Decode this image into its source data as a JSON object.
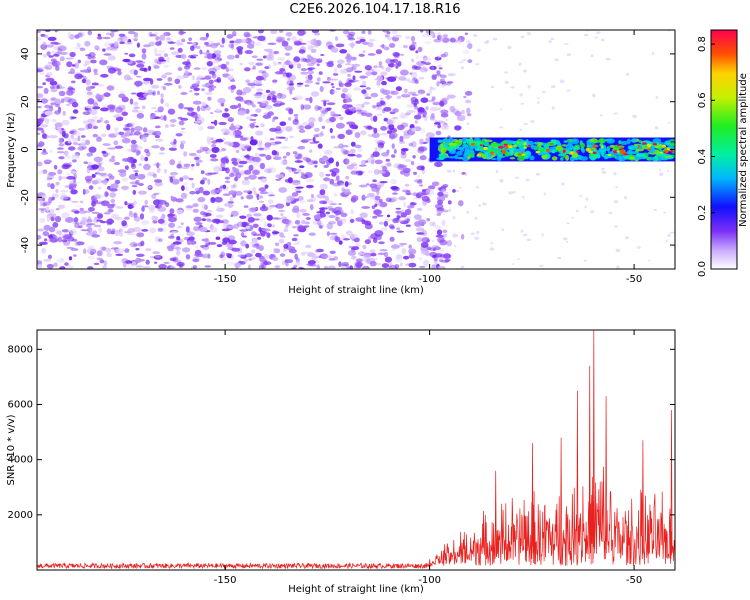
{
  "title": "C2E6.2026.104.17.18.R16",
  "colors": {
    "snr_line": "#e8201e",
    "noise_purple": "#7b2ff7",
    "axis": "#000000"
  },
  "chart_data": [
    {
      "type": "heatmap",
      "name": "spectrogram",
      "xlabel": "Height of straight line (km)",
      "ylabel": "Frequency (Hz)",
      "xlim": [
        -196,
        -40
      ],
      "ylim": [
        -50,
        50
      ],
      "xticks": [
        -150,
        -100,
        -50
      ],
      "yticks": [
        -40,
        -20,
        0,
        20,
        40
      ],
      "colorbar": {
        "label": "Normalized spectral amplitude",
        "range": [
          0.0,
          0.85
        ],
        "ticks": [
          0.0,
          0.2,
          0.4,
          0.6,
          0.8
        ]
      },
      "signal_band": {
        "x_start": -100,
        "x_end": -40,
        "center_freq": 0,
        "half_width": 5
      },
      "noise_region": {
        "x_start": -196,
        "x_end": -96
      }
    },
    {
      "type": "line",
      "name": "snr",
      "xlabel": "Height of straight line (km)",
      "ylabel": "SNR (10 * v/v)",
      "xlim": [
        -196,
        -40
      ],
      "ylim": [
        0,
        8700
      ],
      "xticks": [
        -150,
        -100,
        -50
      ],
      "yticks": [
        2000,
        4000,
        6000,
        8000
      ],
      "peak": {
        "x": -60,
        "y": 8700
      },
      "noise_floor": 150,
      "rise_start": -100
    }
  ]
}
